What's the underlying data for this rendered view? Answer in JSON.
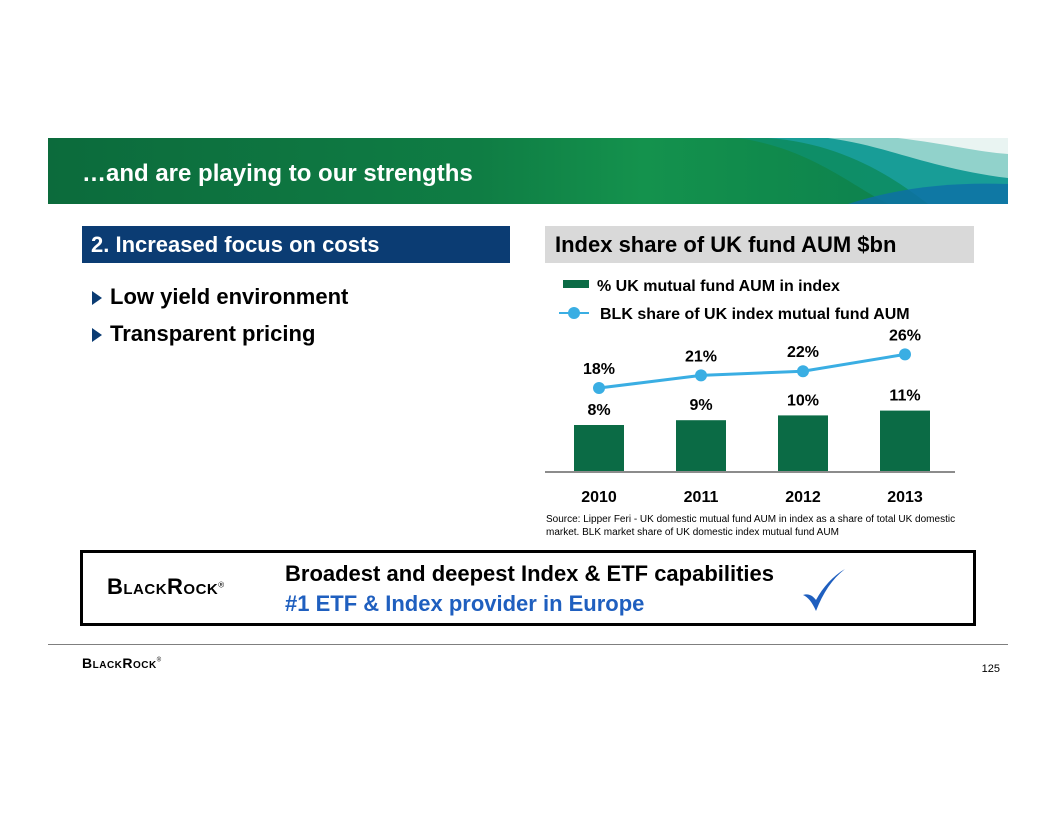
{
  "banner": {
    "title": "…and are playing to our strengths"
  },
  "left": {
    "header": "2. Increased focus on costs",
    "bullets": [
      "Low yield environment",
      "Transparent pricing"
    ]
  },
  "chart_data": {
    "type": "bar",
    "title": "Index share of UK fund AUM $bn",
    "categories": [
      "2010",
      "2011",
      "2012",
      "2013"
    ],
    "series": [
      {
        "name": "% UK mutual fund AUM in index",
        "kind": "bar",
        "values": [
          8,
          9,
          10,
          11
        ],
        "labels": [
          "8%",
          "9%",
          "10%",
          "11%"
        ]
      },
      {
        "name": "BLK share of UK index mutual fund AUM",
        "kind": "line",
        "values": [
          18,
          21,
          22,
          26
        ],
        "labels": [
          "18%",
          "21%",
          "22%",
          "26%"
        ]
      }
    ],
    "colors": {
      "bar": "#0b6b45",
      "line": "#3aaee3",
      "axis": "#8c8c8c"
    },
    "xlabel": "",
    "ylabel": "",
    "legend": "top"
  },
  "source": "Source: Lipper Feri - UK domestic mutual fund AUM in index as a share of total UK domestic market. BLK market share of UK domestic index mutual fund AUM",
  "callout": {
    "logo": "BlackRock",
    "line1": "Broadest and deepest Index & ETF capabilities",
    "line2": "#1 ETF & Index provider in Europe"
  },
  "footer": {
    "logo": "BlackRock",
    "page_number": "125"
  }
}
